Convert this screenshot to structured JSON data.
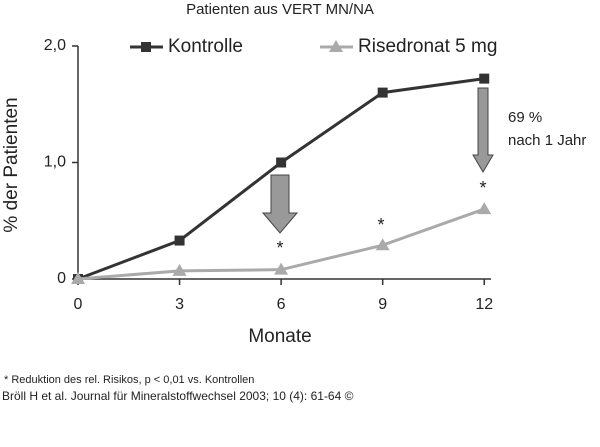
{
  "chart_data": {
    "type": "line",
    "title": "Patienten aus VERT MN/NA",
    "x_label": "Monate",
    "y_label": "% der Patienten",
    "x": [
      0,
      3,
      6,
      9,
      12
    ],
    "series": [
      {
        "name": "Kontrolle",
        "color": "#333333",
        "marker": "square",
        "values": [
          0,
          0.33,
          1.0,
          1.6,
          1.72
        ]
      },
      {
        "name": "Risedronat 5 mg",
        "color": "#aaaaaa",
        "marker": "triangle",
        "values": [
          0,
          0.07,
          0.08,
          0.29,
          0.6
        ]
      }
    ],
    "xlim": [
      0,
      12.2
    ],
    "xticks": [
      0,
      3,
      6,
      9,
      12
    ],
    "ylim": [
      0,
      2.0
    ],
    "yticks": [
      0,
      {
        "value": 1,
        "label": "1,0"
      },
      {
        "value": 2,
        "label": "2,0"
      }
    ],
    "annotations": [
      "69 %",
      "nach 1 Jahr",
      "*",
      "*",
      "*"
    ],
    "footnote": "* Reduktion des rel. Risikos, p < 0,01 vs. Kontrollen",
    "source": "Bröll H et al. Journal für Mineralstoffwechsel 2003; 10 (4): 61-64 ©"
  }
}
